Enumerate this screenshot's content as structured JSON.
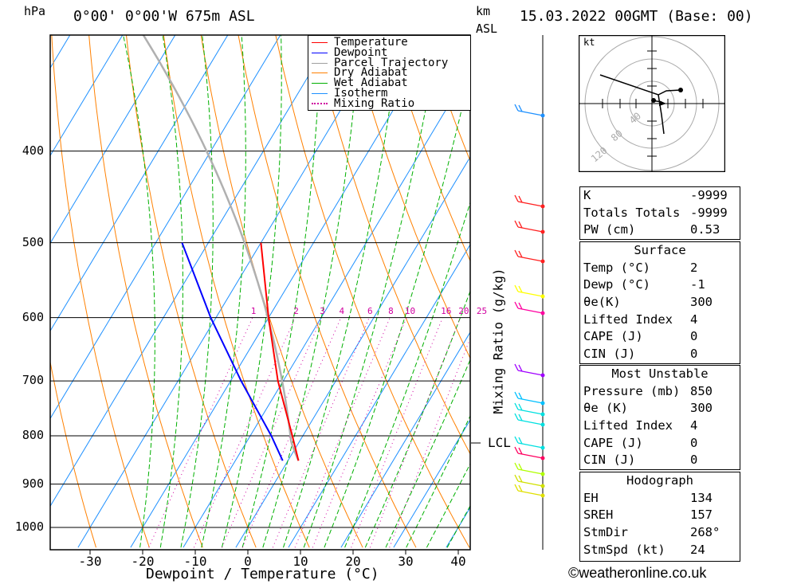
{
  "header": {
    "pressure_unit": "hPa",
    "location": "0°00' 0°00'W 675m ASL",
    "km_label": "km",
    "asl_label": "ASL",
    "datetime": "15.03.2022 00GMT (Base: 00)"
  },
  "chart_data": {
    "type": "skew-t",
    "xlabel": "Dewpoint / Temperature (°C)",
    "ylabel": "hPa",
    "x_ticks": [
      -30,
      -20,
      -10,
      0,
      10,
      20,
      30,
      40
    ],
    "pressure_ticks": [
      400,
      500,
      600,
      700,
      800,
      900,
      1000
    ],
    "temperature": {
      "name": "Temperature",
      "color": "#ff0000",
      "points": [
        {
          "p": 850,
          "t": 2
        },
        {
          "p": 800,
          "t": -2
        },
        {
          "p": 700,
          "t": -11
        },
        {
          "p": 600,
          "t": -20
        },
        {
          "p": 500,
          "t": -30
        }
      ]
    },
    "dewpoint": {
      "name": "Dewpoint",
      "color": "#0000ff",
      "points": [
        {
          "p": 850,
          "t": -1
        },
        {
          "p": 800,
          "t": -6
        },
        {
          "p": 700,
          "t": -18
        },
        {
          "p": 600,
          "t": -31
        },
        {
          "p": 500,
          "t": -45
        }
      ]
    },
    "parcel_color": "#b0b0b0",
    "legend": [
      {
        "label": "Temperature",
        "color": "#ff0000",
        "style": "solid"
      },
      {
        "label": "Dewpoint",
        "color": "#0000ff",
        "style": "solid"
      },
      {
        "label": "Parcel Trajectory",
        "color": "#a0a0a0",
        "style": "solid"
      },
      {
        "label": "Dry Adiabat",
        "color": "#ff8000",
        "style": "solid"
      },
      {
        "label": "Wet Adiabat",
        "color": "#00b000",
        "style": "solid"
      },
      {
        "label": "Isotherm",
        "color": "#1e90ff",
        "style": "solid"
      },
      {
        "label": "Mixing Ratio",
        "color": "#d000a0",
        "style": "dotted"
      }
    ],
    "mixing_ratio_labels": [
      "1",
      "2",
      "3",
      "4",
      "6",
      "8",
      "10",
      "16",
      "20",
      "25"
    ],
    "mixing_ratio_axis_label": "Mixing Ratio (g/kg)",
    "lcl_label": "LCL",
    "lcl_pressure": 820
  },
  "hodograph": {
    "unit": "kt",
    "ring_labels": [
      "40",
      "80",
      "120"
    ]
  },
  "indices": {
    "top": [
      {
        "label": "K",
        "value": "-9999"
      },
      {
        "label": "Totals Totals",
        "value": "-9999"
      },
      {
        "label": "PW (cm)",
        "value": "0.53"
      }
    ],
    "surface_title": "Surface",
    "surface": [
      {
        "label": "Temp (°C)",
        "value": "2"
      },
      {
        "label": "Dewp (°C)",
        "value": "-1"
      },
      {
        "label": "θe(K)",
        "value": "300"
      },
      {
        "label": "Lifted Index",
        "value": "4"
      },
      {
        "label": "CAPE (J)",
        "value": "0"
      },
      {
        "label": "CIN (J)",
        "value": "0"
      }
    ],
    "mu_title": "Most Unstable",
    "mu": [
      {
        "label": "Pressure (mb)",
        "value": "850"
      },
      {
        "label": "θe (K)",
        "value": "300"
      },
      {
        "label": "Lifted Index",
        "value": "4"
      },
      {
        "label": "CAPE (J)",
        "value": "0"
      },
      {
        "label": "CIN (J)",
        "value": "0"
      }
    ],
    "hodo_title": "Hodograph",
    "hodo": [
      {
        "label": "EH",
        "value": "134"
      },
      {
        "label": "SREH",
        "value": "157"
      },
      {
        "label": "StmDir",
        "value": "268°"
      },
      {
        "label": "StmSpd (kt)",
        "value": "24"
      }
    ]
  },
  "footer": {
    "copyright": "©weatheronline.co.uk"
  }
}
